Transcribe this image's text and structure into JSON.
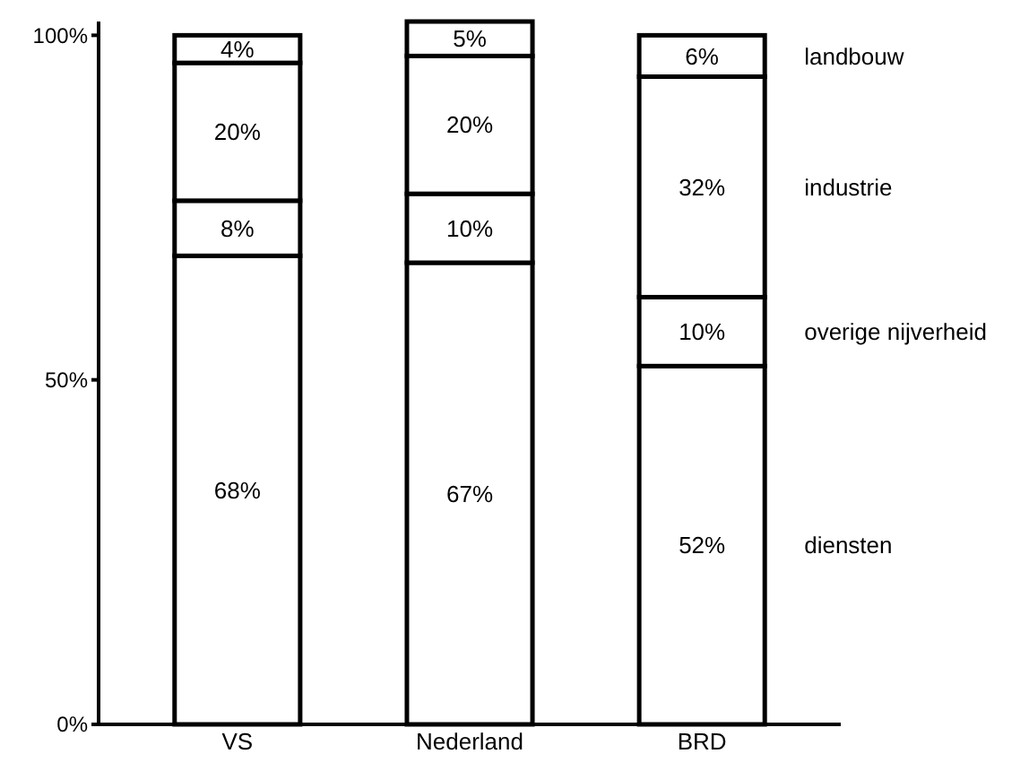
{
  "chart_data": {
    "type": "bar",
    "stacked": true,
    "categories": [
      "VS",
      "Nederland",
      "BRD"
    ],
    "series": [
      {
        "name": "diensten",
        "color": "#ffffff",
        "values": [
          68,
          67,
          52
        ],
        "value_labels": [
          "68%",
          "67%",
          "52%"
        ]
      },
      {
        "name": "overige nijverheid",
        "color": "#ffffff",
        "values": [
          8,
          10,
          10
        ],
        "value_labels": [
          "8%",
          "10%",
          "10%"
        ]
      },
      {
        "name": "industrie",
        "color": "#ffffff",
        "values": [
          20,
          20,
          32
        ],
        "value_labels": [
          "20%",
          "20%",
          "32%"
        ]
      },
      {
        "name": "landbouw",
        "color": "#ffffff",
        "values": [
          4,
          5,
          6
        ],
        "value_labels": [
          "4%",
          "5%",
          "6%"
        ]
      }
    ],
    "ylim": [
      0,
      102
    ],
    "yticks": [
      {
        "value": 0,
        "label": "0%"
      },
      {
        "value": 50,
        "label": "50%"
      },
      {
        "value": 100,
        "label": "100%"
      }
    ],
    "grid": false
  }
}
